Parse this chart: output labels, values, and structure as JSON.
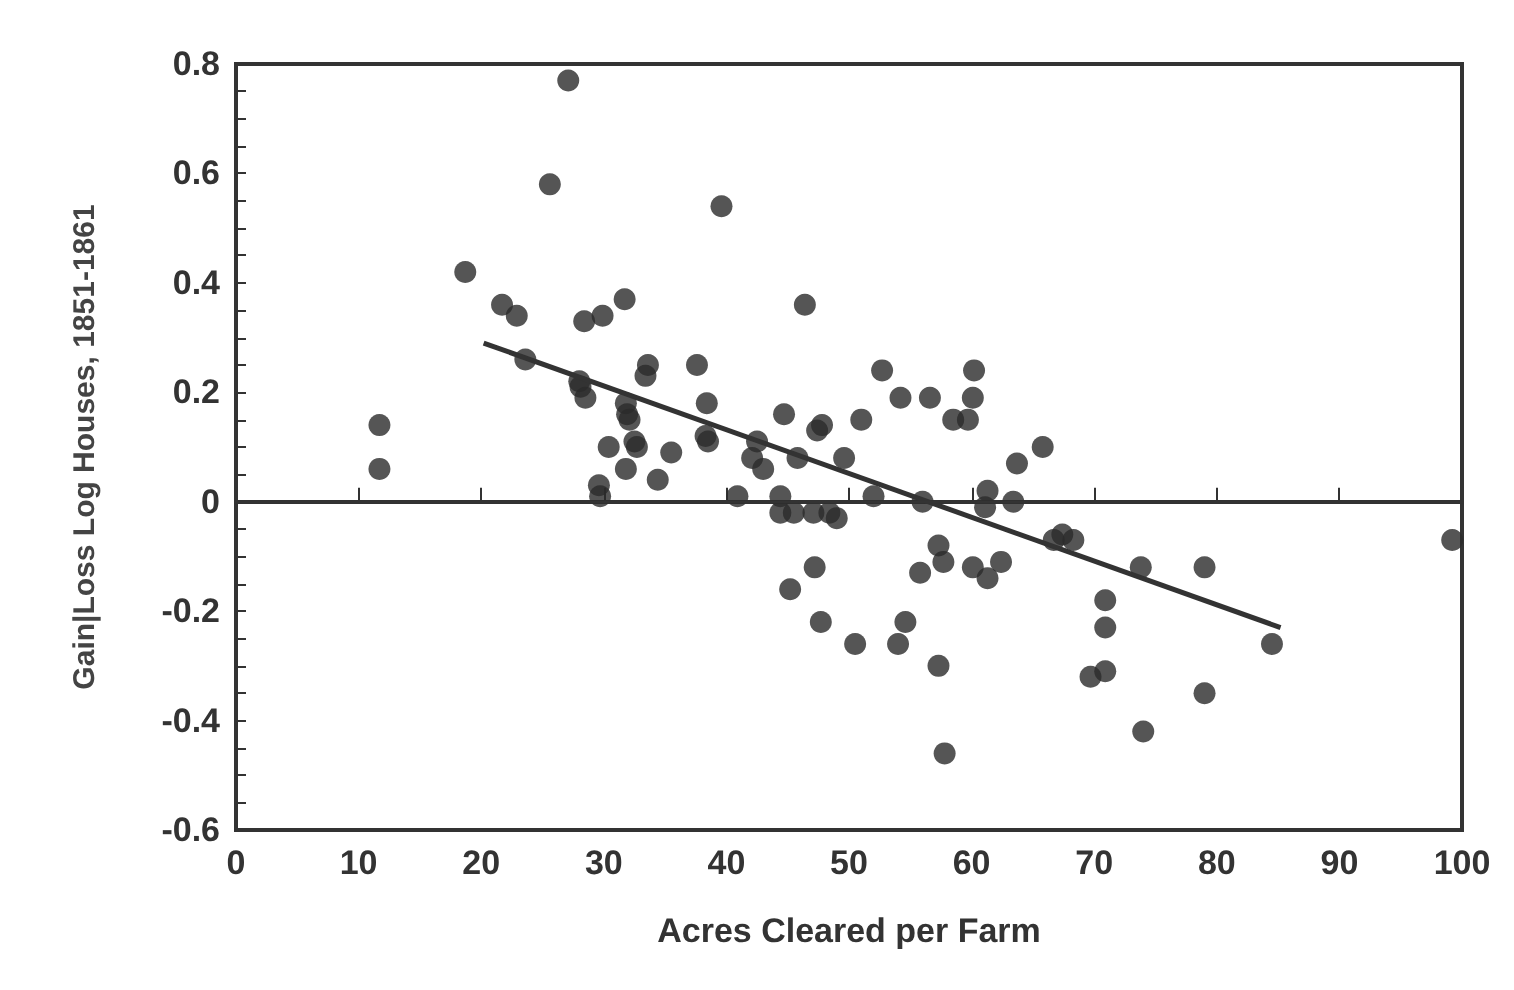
{
  "chart_data": {
    "type": "scatter",
    "xlabel": "Acres Cleared per Farm",
    "ylabel": "Gain|Loss Log Houses, 1851-1861",
    "xlim": [
      0,
      100
    ],
    "xticks": [
      0,
      10,
      20,
      30,
      40,
      50,
      60,
      70,
      80,
      90,
      100
    ],
    "ylim": [
      -0.6,
      0.8
    ],
    "yticks": [
      {
        "value": -0.6,
        "label": "-0.6"
      },
      {
        "value": -0.55,
        "label": null
      },
      {
        "value": -0.5,
        "label": null
      },
      {
        "value": -0.45,
        "label": null
      },
      {
        "value": -0.4,
        "label": "-0.4"
      },
      {
        "value": -0.35,
        "label": null
      },
      {
        "value": -0.3,
        "label": null
      },
      {
        "value": -0.25,
        "label": null
      },
      {
        "value": -0.2,
        "label": "-0.2"
      },
      {
        "value": -0.15,
        "label": null
      },
      {
        "value": -0.1,
        "label": null
      },
      {
        "value": -0.05,
        "label": null
      },
      0,
      {
        "value": 0.05,
        "label": null
      },
      {
        "value": 0.1,
        "label": null
      },
      {
        "value": 0.15,
        "label": null
      },
      0.2,
      {
        "value": 0.25,
        "label": null
      },
      {
        "value": 0.3,
        "label": null
      },
      {
        "value": 0.35,
        "label": null
      },
      0.4,
      {
        "value": 0.45,
        "label": null
      },
      {
        "value": 0.5,
        "label": null
      },
      {
        "value": 0.55,
        "label": null
      },
      0.6,
      {
        "value": 0.65,
        "label": null
      },
      {
        "value": 0.7,
        "label": null
      },
      {
        "value": 0.75,
        "label": null
      },
      0.8
    ],
    "grid": false,
    "marker": "circle",
    "ref_lines": [
      {
        "axis": "y",
        "value": 0,
        "color": "#333333",
        "line_style": "solid"
      }
    ],
    "series": [
      {
        "color": "#2b2b2b",
        "x": [
          27.1,
          25.6,
          39.6,
          18.7,
          21.7,
          22.9,
          28.4,
          29.9,
          31.7,
          46.4,
          23.6,
          33.6,
          33.4,
          37.6,
          28.0,
          28.5,
          31.8,
          31.9,
          38.4,
          44.7,
          47.4,
          47.8,
          51.0,
          11.7,
          11.7,
          38.3,
          38.5,
          32.5,
          32.7,
          30.4,
          31.8,
          35.5,
          34.4,
          29.6,
          29.7,
          40.9,
          42.5,
          42.1,
          43.0,
          45.8,
          49.6,
          44.4,
          44.4,
          45.5,
          47.1,
          48.4,
          49.0,
          47.2,
          45.2,
          47.7,
          50.5,
          52.7,
          60.2,
          54.2,
          56.6,
          60.1,
          58.5,
          59.7,
          65.8,
          63.7,
          52.0,
          56.0,
          61.3,
          61.1,
          63.4,
          67.4,
          66.7,
          68.3,
          57.3,
          57.7,
          55.8,
          60.1,
          61.3,
          62.4,
          54.6,
          54.0,
          57.3,
          57.8,
          70.9,
          70.9,
          69.7,
          70.9,
          73.8,
          79.0,
          74.0,
          79.0,
          84.5,
          99.2,
          28.1,
          32.1
        ],
        "values": [
          0.77,
          0.58,
          0.54,
          0.42,
          0.36,
          0.34,
          0.33,
          0.34,
          0.37,
          0.36,
          0.26,
          0.25,
          0.23,
          0.25,
          0.22,
          0.19,
          0.18,
          0.16,
          0.18,
          0.16,
          0.13,
          0.14,
          0.15,
          0.14,
          0.06,
          0.12,
          0.11,
          0.11,
          0.1,
          0.1,
          0.06,
          0.09,
          0.04,
          0.03,
          0.01,
          0.01,
          0.11,
          0.08,
          0.06,
          0.08,
          0.08,
          0.01,
          -0.02,
          -0.02,
          -0.02,
          -0.02,
          -0.03,
          -0.12,
          -0.16,
          -0.22,
          -0.26,
          0.24,
          0.24,
          0.19,
          0.19,
          0.19,
          0.15,
          0.15,
          0.1,
          0.07,
          0.01,
          0.0,
          0.02,
          -0.01,
          0.0,
          -0.06,
          -0.07,
          -0.07,
          -0.08,
          -0.11,
          -0.13,
          -0.12,
          -0.14,
          -0.11,
          -0.22,
          -0.26,
          -0.3,
          -0.46,
          -0.18,
          -0.23,
          -0.32,
          -0.31,
          -0.12,
          -0.12,
          -0.42,
          -0.35,
          -0.26,
          -0.07,
          0.21,
          0.15
        ]
      },
      {
        "type": "line",
        "color": "#333333",
        "marker": "none",
        "x": [
          20.2,
          85.2
        ],
        "values": [
          0.29,
          -0.23
        ]
      }
    ]
  }
}
